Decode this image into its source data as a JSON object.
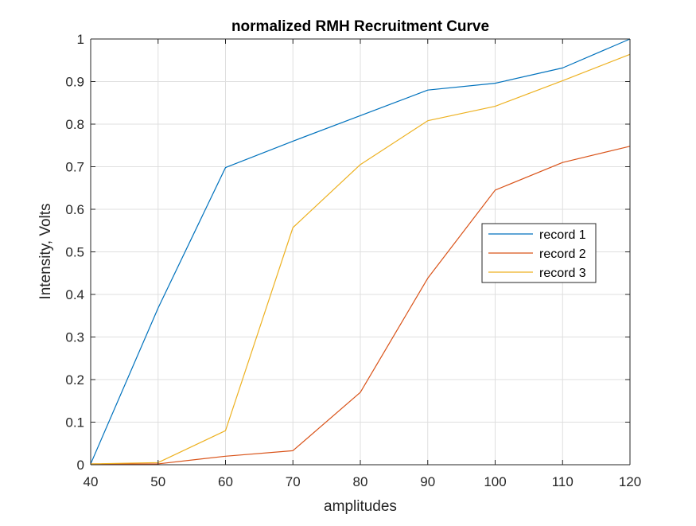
{
  "chart_data": {
    "type": "line",
    "title": "normalized RMH Recruitment Curve",
    "xlabel": "amplitudes",
    "ylabel": "Intensity, Volts",
    "xlim": [
      40,
      120
    ],
    "ylim": [
      0,
      1
    ],
    "xticks": [
      40,
      50,
      60,
      70,
      80,
      90,
      100,
      110,
      120
    ],
    "yticks": [
      0,
      0.1,
      0.2,
      0.3,
      0.4,
      0.5,
      0.6,
      0.7,
      0.8,
      0.9,
      1
    ],
    "grid": true,
    "legend_position": "right-center",
    "x": [
      40,
      50,
      60,
      70,
      80,
      90,
      100,
      110,
      120
    ],
    "series": [
      {
        "name": "record 1",
        "color": "#0072BD",
        "values": [
          0.002,
          0.368,
          0.698,
          0.76,
          0.82,
          0.88,
          0.896,
          0.932,
          1.0
        ]
      },
      {
        "name": "record 2",
        "color": "#D95319",
        "values": [
          0.002,
          0.002,
          0.02,
          0.033,
          0.17,
          0.438,
          0.645,
          0.71,
          0.748
        ]
      },
      {
        "name": "record 3",
        "color": "#EDB120",
        "values": [
          0.002,
          0.005,
          0.08,
          0.557,
          0.705,
          0.808,
          0.842,
          0.902,
          0.964
        ]
      }
    ]
  }
}
